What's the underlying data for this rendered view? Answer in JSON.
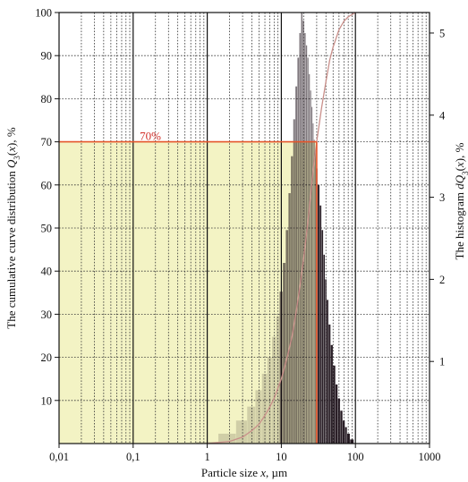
{
  "chart_data": {
    "type": "bar",
    "xlabel_parts": [
      "Particle size ",
      "x",
      ", µm"
    ],
    "ylabel_left_parts": [
      "The cumulative curve distribution ",
      "Q",
      "3",
      "(",
      "x",
      "), %"
    ],
    "ylabel_right_parts": [
      "The histogram ",
      "dQ",
      "3",
      "(",
      "x",
      "), %"
    ],
    "x_scale": "log",
    "xlim": [
      0.01,
      1000
    ],
    "x_ticks": [
      {
        "value": 0.01,
        "label": "0,01"
      },
      {
        "value": 0.1,
        "label": "0,1"
      },
      {
        "value": 1,
        "label": "1"
      },
      {
        "value": 10,
        "label": "10"
      },
      {
        "value": 100,
        "label": "100"
      },
      {
        "value": 1000,
        "label": "1000"
      }
    ],
    "ylim_left": [
      0,
      100
    ],
    "y_ticks_left": [
      10,
      20,
      30,
      40,
      50,
      60,
      70,
      80,
      90,
      100
    ],
    "ylim_right": [
      0,
      5.25
    ],
    "y_ticks_right": [
      1,
      2,
      3,
      4,
      5
    ],
    "grid": true,
    "annotation": {
      "label": "70%",
      "y_value": 70,
      "x_from": 0.01,
      "x_to": 30,
      "fill_color": "#f3f3c4",
      "line_color": "#e5542a"
    },
    "cumulative_curve": {
      "x": [
        1,
        2,
        3,
        4,
        5,
        6,
        7,
        8,
        10,
        12,
        14,
        16,
        18,
        20,
        22,
        24,
        26,
        28,
        30,
        35,
        40,
        45,
        50,
        60,
        70,
        80,
        100
      ],
      "y": [
        0,
        0.5,
        1.5,
        3,
        4.5,
        6.5,
        8.5,
        10.5,
        15,
        20,
        25,
        31,
        37,
        43,
        49,
        55,
        61,
        66,
        70,
        78,
        84,
        89,
        92,
        96,
        98,
        99,
        100
      ]
    },
    "histogram": {
      "x": [
        1,
        2,
        3,
        4,
        5,
        6,
        7,
        8,
        9,
        10,
        11,
        12,
        13,
        14,
        15,
        16,
        17,
        18,
        19,
        20,
        21,
        22,
        23,
        24,
        25,
        26,
        27,
        28,
        29,
        30,
        32,
        34,
        36,
        38,
        40,
        42,
        45,
        48,
        52,
        56,
        60,
        65,
        70,
        75,
        80,
        90
      ],
      "values": [
        0.02,
        0.12,
        0.28,
        0.45,
        0.65,
        0.85,
        1.05,
        1.3,
        1.55,
        1.85,
        2.2,
        2.6,
        3.05,
        3.5,
        3.95,
        4.35,
        4.7,
        5.0,
        5.25,
        5.15,
        5.0,
        4.85,
        4.7,
        4.5,
        4.3,
        4.1,
        3.9,
        3.7,
        3.55,
        3.35,
        3.15,
        2.9,
        2.6,
        2.3,
        2.0,
        1.75,
        1.45,
        1.2,
        0.95,
        0.72,
        0.55,
        0.4,
        0.28,
        0.2,
        0.12,
        0.05
      ],
      "color": "#160a12"
    }
  }
}
